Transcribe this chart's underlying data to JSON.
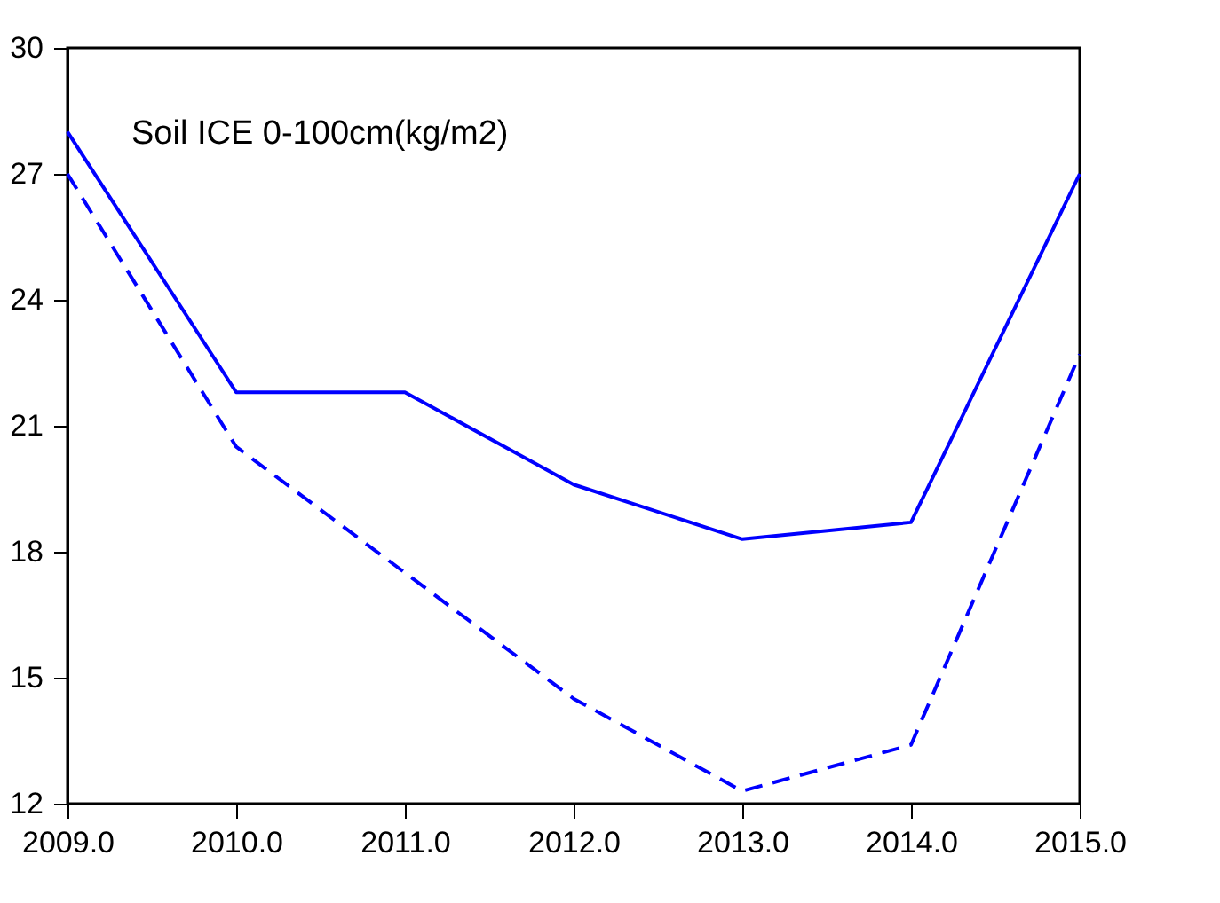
{
  "chart_data": {
    "type": "line",
    "title": "Soil ICE 0-100cm(kg/m2)",
    "x": [
      2009,
      2010,
      2011,
      2012,
      2013,
      2014,
      2015
    ],
    "series": [
      {
        "color": "#0000ff",
        "line_style": "solid",
        "values": [
          28.0,
          21.8,
          21.8,
          19.6,
          18.3,
          18.7,
          27.0
        ]
      },
      {
        "color": "#0000ff",
        "line_style": "dashed",
        "values": [
          27.0,
          20.5,
          17.5,
          14.5,
          12.3,
          13.4,
          22.7
        ]
      }
    ],
    "xlim": [
      2009,
      2015
    ],
    "xticks": [
      {
        "value": 2009,
        "label": "2009.0"
      },
      {
        "value": 2010,
        "label": "2010.0"
      },
      {
        "value": 2011,
        "label": "2011.0"
      },
      {
        "value": 2012,
        "label": "2012.0"
      },
      {
        "value": 2013,
        "label": "2013.0"
      },
      {
        "value": 2014,
        "label": "2014.0"
      },
      {
        "value": 2015,
        "label": "2015.0"
      }
    ],
    "ylim": [
      12,
      30
    ],
    "yticks": [
      12,
      15,
      18,
      21,
      24,
      27,
      30
    ],
    "tick_labels": "xy"
  }
}
